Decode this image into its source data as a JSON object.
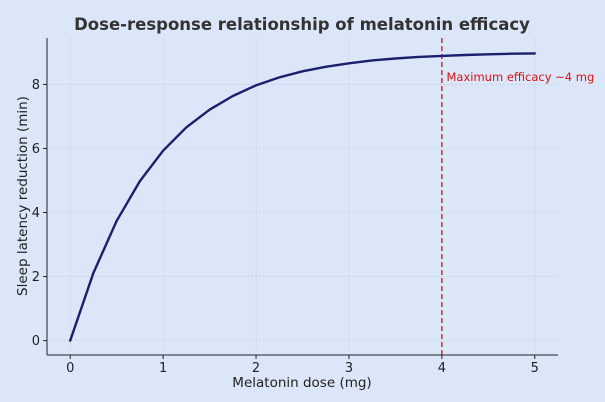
{
  "chart_data": {
    "type": "line",
    "title": "Dose-response relationship of melatonin efficacy",
    "xlabel": "Melatonin dose (mg)",
    "ylabel": "Sleep latency reduction (min)",
    "xlim": [
      -0.25,
      5.25
    ],
    "ylim": [
      -0.45,
      9.45
    ],
    "xticks": [
      0,
      1,
      2,
      3,
      4,
      5
    ],
    "yticks": [
      0,
      2,
      4,
      6,
      8
    ],
    "grid": true,
    "series": [
      {
        "color": "#1a1f6e",
        "x": [
          0,
          0.25,
          0.5,
          0.75,
          1,
          1.25,
          1.5,
          1.75,
          2,
          2.25,
          2.5,
          2.75,
          3,
          3.25,
          3.5,
          3.75,
          4,
          4.25,
          4.5,
          4.75,
          5
        ],
        "y": [
          0,
          2.12,
          3.74,
          4.98,
          5.93,
          6.66,
          7.21,
          7.64,
          7.97,
          8.22,
          8.41,
          8.55,
          8.66,
          8.75,
          8.81,
          8.86,
          8.89,
          8.92,
          8.94,
          8.96,
          8.97
        ]
      }
    ],
    "annotations": [
      {
        "type": "vline",
        "x": 4,
        "color": "#dd1111",
        "style": "dashed"
      },
      {
        "type": "text",
        "x": 4.05,
        "y": 8.1,
        "text": "Maximum efficacy ~4 mg",
        "color": "#dd1111"
      }
    ]
  }
}
